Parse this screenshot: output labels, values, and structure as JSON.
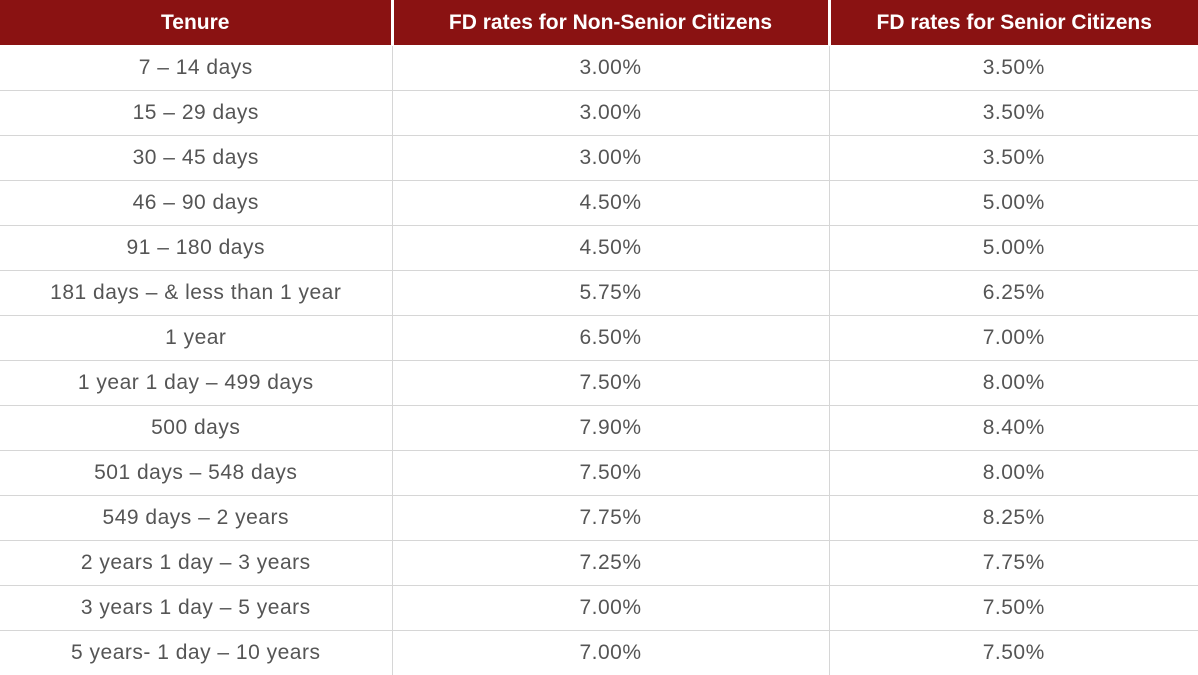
{
  "table": {
    "headers": [
      "Tenure",
      "FD rates for Non-Senior Citizens",
      "FD rates for Senior Citizens"
    ],
    "rows": [
      [
        "7 – 14 days",
        "3.00%",
        "3.50%"
      ],
      [
        "15 – 29 days",
        "3.00%",
        "3.50%"
      ],
      [
        "30 – 45 days",
        "3.00%",
        "3.50%"
      ],
      [
        "46 – 90 days",
        "4.50%",
        "5.00%"
      ],
      [
        "91 – 180 days",
        "4.50%",
        "5.00%"
      ],
      [
        "181 days – & less than 1 year",
        "5.75%",
        "6.25%"
      ],
      [
        "1 year",
        "6.50%",
        "7.00%"
      ],
      [
        "1 year 1 day – 499 days",
        "7.50%",
        "8.00%"
      ],
      [
        "500 days",
        "7.90%",
        "8.40%"
      ],
      [
        "501 days – 548 days",
        "7.50%",
        "8.00%"
      ],
      [
        "549 days – 2 years",
        "7.75%",
        "8.25%"
      ],
      [
        "2 years 1 day – 3 years",
        "7.25%",
        "7.75%"
      ],
      [
        "3 years 1 day – 5 years",
        "7.00%",
        "7.50%"
      ],
      [
        "5 years- 1 day – 10 years",
        "7.00%",
        "7.50%"
      ]
    ]
  }
}
